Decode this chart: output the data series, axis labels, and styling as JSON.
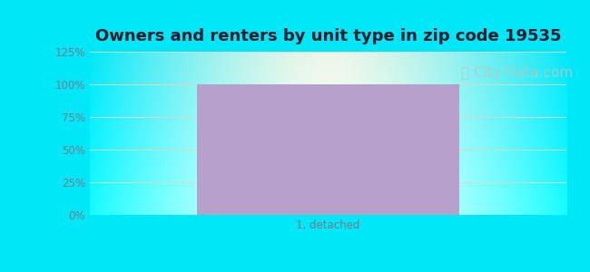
{
  "title": "Owners and renters by unit type in zip code 19535",
  "categories": [
    "1, detached"
  ],
  "values": [
    100
  ],
  "bar_color": "#b8a0cc",
  "ylim": [
    0,
    125
  ],
  "yticks": [
    0,
    25,
    50,
    75,
    100,
    125
  ],
  "ytick_labels": [
    "0%",
    "25%",
    "50%",
    "75%",
    "100%",
    "125%"
  ],
  "bg_outer_color": "#00e8f8",
  "title_fontsize": 13,
  "title_color": "#1a1a2e",
  "tick_color": "#7a7a8a",
  "grid_color": "#d8d8cc",
  "watermark": "City-Data.com",
  "watermark_color": "#b8c8c0",
  "watermark_fontsize": 11,
  "figwidth": 6.5,
  "figheight": 3.0,
  "dpi": 100
}
